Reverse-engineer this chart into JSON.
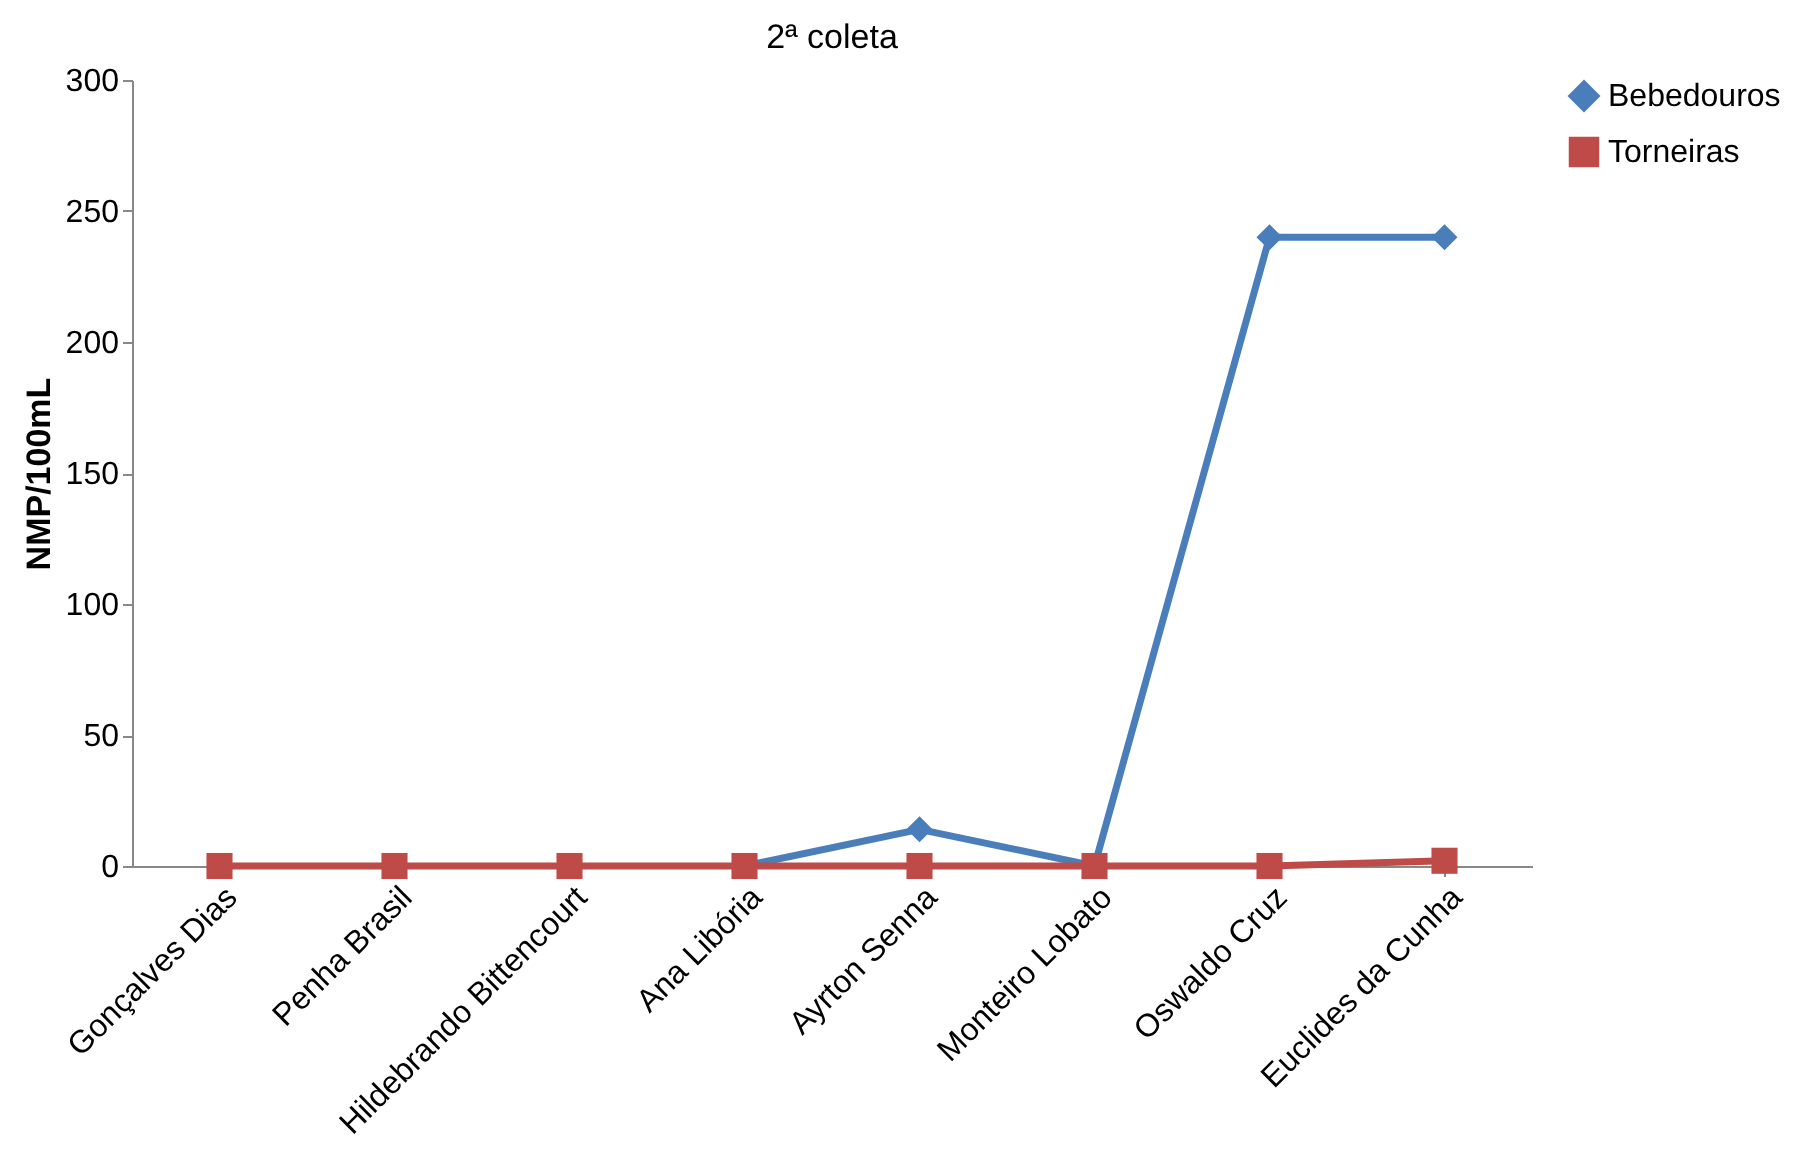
{
  "chart_data": {
    "type": "line",
    "title": "2ª coleta",
    "ylabel": "NMP/100mL",
    "categories": [
      "Gonçalves Dias",
      "Penha Brasil",
      "Hildebrando Bittencourt",
      "Ana Libória",
      "Ayrton Senna",
      "Monteiro Lobato",
      "Oswaldo Cruz",
      "Euclides da Cunha"
    ],
    "series": [
      {
        "name": "Bebedouros",
        "color": "#4a7ebb",
        "marker": "diamond",
        "values": [
          null,
          null,
          null,
          0,
          14,
          0,
          240,
          240
        ]
      },
      {
        "name": "Torneiras",
        "color": "#be4b48",
        "marker": "square",
        "values": [
          0,
          0,
          0,
          0,
          0,
          0,
          0,
          2
        ]
      }
    ],
    "ylim": [
      0,
      300
    ],
    "yticks": [
      0,
      50,
      100,
      150,
      200,
      250,
      300
    ],
    "grid": false,
    "legend": "right",
    "line_style": "solid"
  }
}
